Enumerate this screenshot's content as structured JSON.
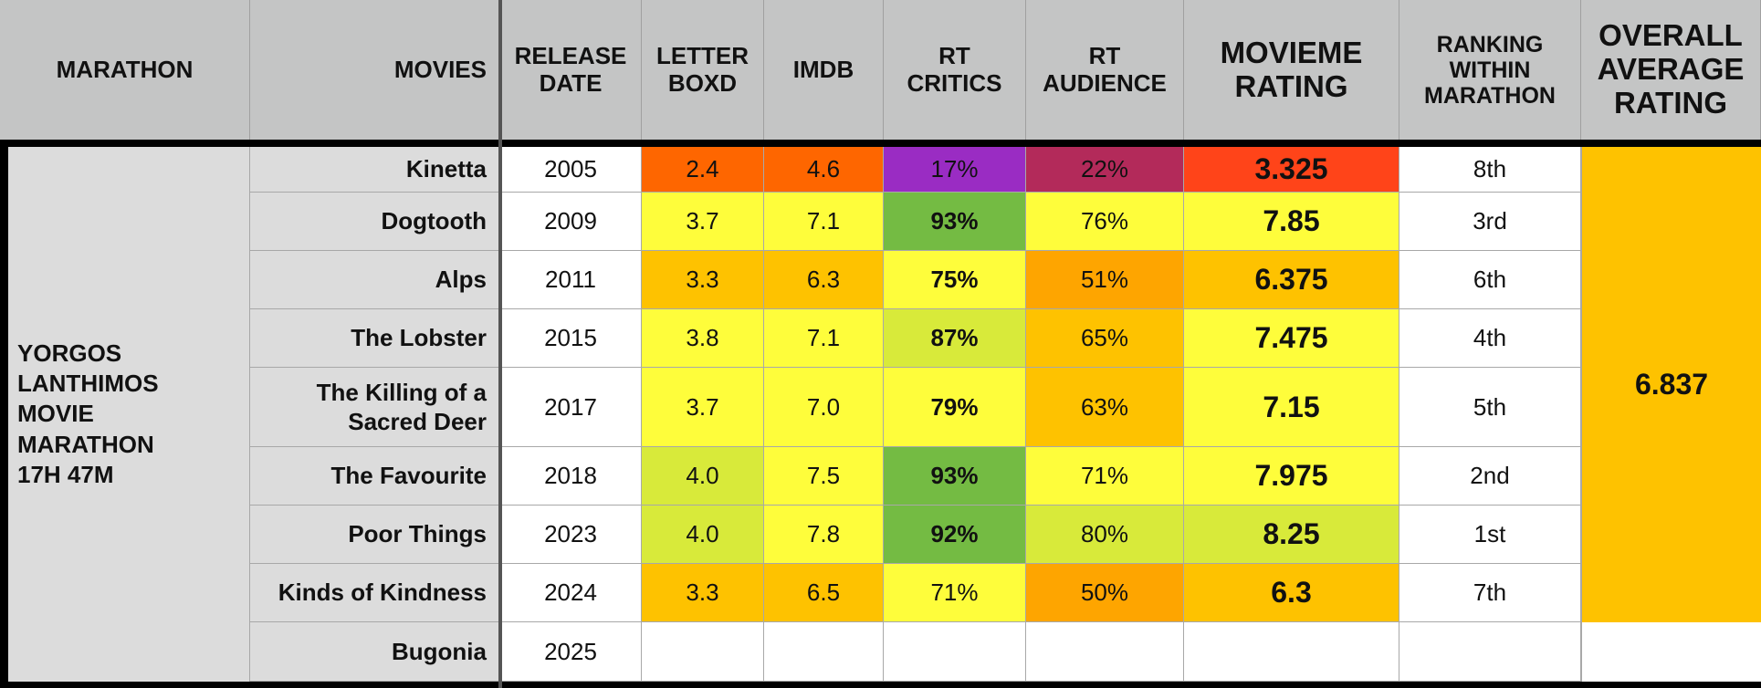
{
  "headers": {
    "marathon": [
      "MARATHON"
    ],
    "movies": [
      "MOVIES"
    ],
    "release": [
      "RELEASE",
      "DATE"
    ],
    "letterboxd": [
      "LETTER",
      "BOXD"
    ],
    "imdb": [
      "IMDB"
    ],
    "rt_critics": [
      "RT",
      "CRITICS"
    ],
    "rt_audience": [
      "RT",
      "AUDIENCE"
    ],
    "movieme": [
      "MOVIEME",
      "RATING"
    ],
    "ranking": [
      "RANKING",
      "WITHIN",
      "MARATHON"
    ],
    "overall": [
      "OVERALL",
      "AVERAGE",
      "RATING"
    ]
  },
  "marathon_label": [
    "YORGOS",
    "LANTHIMOS",
    "MOVIE",
    "MARATHON",
    "17H 47M"
  ],
  "overall_rating": "6.837",
  "colors": {
    "red_orange": "#fe6600",
    "red": "#ff4419",
    "purple": "#9a2cc3",
    "maroon": "#b32a5a",
    "yellow": "#fefd3b",
    "yellow_green": "#d8ea3a",
    "green": "#74bb43",
    "amber": "#fec200",
    "orange": "#fea500",
    "white": "#ffffff"
  },
  "rows": [
    {
      "movie": [
        "Kinetta"
      ],
      "year": "2005",
      "letterboxd": "2.4",
      "imdb": "4.6",
      "rt_critics": "17%",
      "rt_audience": "22%",
      "movieme": "3.325",
      "rank": "8th",
      "c": {
        "letterboxd": "#fe6600",
        "imdb": "#fe6600",
        "rt_critics": "#9a2cc3",
        "rt_audience": "#b32a5a",
        "movieme": "#ff4419"
      },
      "critics_bold": false
    },
    {
      "movie": [
        "Dogtooth"
      ],
      "year": "2009",
      "letterboxd": "3.7",
      "imdb": "7.1",
      "rt_critics": "93%",
      "rt_audience": "76%",
      "movieme": "7.85",
      "rank": "3rd",
      "c": {
        "letterboxd": "#fefd3b",
        "imdb": "#fefd3b",
        "rt_critics": "#74bb43",
        "rt_audience": "#fefd3b",
        "movieme": "#fefd3b"
      },
      "critics_bold": true
    },
    {
      "movie": [
        "Alps"
      ],
      "year": "2011",
      "letterboxd": "3.3",
      "imdb": "6.3",
      "rt_critics": "75%",
      "rt_audience": "51%",
      "movieme": "6.375",
      "rank": "6th",
      "c": {
        "letterboxd": "#fec200",
        "imdb": "#fec200",
        "rt_critics": "#fefd3b",
        "rt_audience": "#fea500",
        "movieme": "#fec200"
      },
      "critics_bold": true
    },
    {
      "movie": [
        "The Lobster"
      ],
      "year": "2015",
      "letterboxd": "3.8",
      "imdb": "7.1",
      "rt_critics": "87%",
      "rt_audience": "65%",
      "movieme": "7.475",
      "rank": "4th",
      "c": {
        "letterboxd": "#fefd3b",
        "imdb": "#fefd3b",
        "rt_critics": "#d8ea3a",
        "rt_audience": "#fec200",
        "movieme": "#fefd3b"
      },
      "critics_bold": true
    },
    {
      "movie": [
        "The Killing of a",
        "Sacred Deer"
      ],
      "year": "2017",
      "letterboxd": "3.7",
      "imdb": "7.0",
      "rt_critics": "79%",
      "rt_audience": "63%",
      "movieme": "7.15",
      "rank": "5th",
      "c": {
        "letterboxd": "#fefd3b",
        "imdb": "#fefd3b",
        "rt_critics": "#fefd3b",
        "rt_audience": "#fec200",
        "movieme": "#fefd3b"
      },
      "critics_bold": true
    },
    {
      "movie": [
        "The Favourite"
      ],
      "year": "2018",
      "letterboxd": "4.0",
      "imdb": "7.5",
      "rt_critics": "93%",
      "rt_audience": "71%",
      "movieme": "7.975",
      "rank": "2nd",
      "c": {
        "letterboxd": "#d8ea3a",
        "imdb": "#fefd3b",
        "rt_critics": "#74bb43",
        "rt_audience": "#fefd3b",
        "movieme": "#fefd3b"
      },
      "critics_bold": true
    },
    {
      "movie": [
        "Poor Things"
      ],
      "year": "2023",
      "letterboxd": "4.0",
      "imdb": "7.8",
      "rt_critics": "92%",
      "rt_audience": "80%",
      "movieme": "8.25",
      "rank": "1st",
      "c": {
        "letterboxd": "#d8ea3a",
        "imdb": "#fefd3b",
        "rt_critics": "#74bb43",
        "rt_audience": "#d8ea3a",
        "movieme": "#d8ea3a"
      },
      "critics_bold": true
    },
    {
      "movie": [
        "Kinds of Kindness"
      ],
      "year": "2024",
      "letterboxd": "3.3",
      "imdb": "6.5",
      "rt_critics": "71%",
      "rt_audience": "50%",
      "movieme": "6.3",
      "rank": "7th",
      "c": {
        "letterboxd": "#fec200",
        "imdb": "#fec200",
        "rt_critics": "#fefd3b",
        "rt_audience": "#fea500",
        "movieme": "#fec200"
      },
      "critics_bold": false
    },
    {
      "movie": [
        "Bugonia"
      ],
      "year": "2025",
      "letterboxd": "",
      "imdb": "",
      "rt_critics": "",
      "rt_audience": "",
      "movieme": "",
      "rank": "",
      "c": {
        "letterboxd": "#ffffff",
        "imdb": "#ffffff",
        "rt_critics": "#ffffff",
        "rt_audience": "#ffffff",
        "movieme": "#ffffff"
      },
      "critics_bold": false
    }
  ]
}
